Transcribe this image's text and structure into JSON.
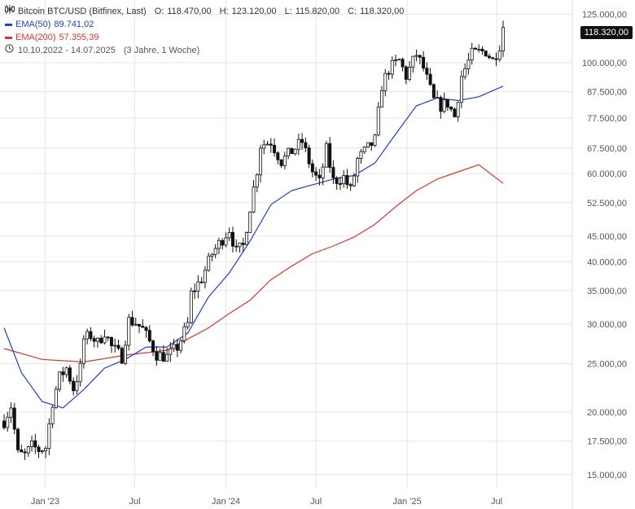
{
  "header": {
    "title": "Bitcoin BTC/USD (Bitfinex, Last)",
    "ohlc": [
      {
        "label": "O:",
        "value": "118.470,00"
      },
      {
        "label": "H:",
        "value": "123.120,00"
      },
      {
        "label": "L:",
        "value": "115.820,00"
      },
      {
        "label": "C:",
        "value": "118.320,00"
      }
    ],
    "ema50_label": "EMA(50)",
    "ema50_value": "89.741,02",
    "ema200_label": "EMA(200)",
    "ema200_value": "57.355,39",
    "date_range": "10.10.2022 - 14.07.2025",
    "duration": "(3 Jahre, 1 Woche)",
    "last_price_tag": "118.320,00"
  },
  "colors": {
    "up": "#ffffff",
    "down": "#111111",
    "candle_outline": "#111111",
    "ema50": "#1f3fd6",
    "ema200": "#e0342a",
    "grid": "#e6e6e6",
    "axis_text": "#555555"
  },
  "chart_data": {
    "type": "candlestick",
    "title": "Bitcoin BTC/USD (Bitfinex, Last)",
    "y_scale": "log",
    "ylim": [
      13800,
      131000
    ],
    "x_range": [
      "2022-10-10",
      "2025-07-14"
    ],
    "y_ticks": [
      {
        "value": 15000,
        "label": "15.000,00"
      },
      {
        "value": 17500,
        "label": "17.500,00"
      },
      {
        "value": 20000,
        "label": "20.000,00"
      },
      {
        "value": 25000,
        "label": "25.000,00"
      },
      {
        "value": 30000,
        "label": "30.000,00"
      },
      {
        "value": 35000,
        "label": "35.000,00"
      },
      {
        "value": 40000,
        "label": "40.000,00"
      },
      {
        "value": 45000,
        "label": "45.000,00"
      },
      {
        "value": 52500,
        "label": "52.500,00"
      },
      {
        "value": 60000,
        "label": "60.000,00"
      },
      {
        "value": 67500,
        "label": "67.500,00"
      },
      {
        "value": 77500,
        "label": "77.500,00"
      },
      {
        "value": 87500,
        "label": "87.500,00"
      },
      {
        "value": 100000,
        "label": "100.000,00"
      },
      {
        "value": 125000,
        "label": "125.000,00"
      }
    ],
    "x_ticks": [
      {
        "date": "2023-01-01",
        "label": "Jan '23"
      },
      {
        "date": "2023-07-01",
        "label": "Jul"
      },
      {
        "date": "2024-01-01",
        "label": "Jan '24"
      },
      {
        "date": "2024-07-01",
        "label": "Jul"
      },
      {
        "date": "2025-01-01",
        "label": "Jan '25"
      },
      {
        "date": "2025-07-01",
        "label": "Jul"
      }
    ],
    "close_series": [
      [
        "2022-10-10",
        19200
      ],
      [
        "2022-10-24",
        20600
      ],
      [
        "2022-11-07",
        16500
      ],
      [
        "2022-11-21",
        16400
      ],
      [
        "2022-12-05",
        17100
      ],
      [
        "2022-12-19",
        16800
      ],
      [
        "2023-01-02",
        17000
      ],
      [
        "2023-01-16",
        21000
      ],
      [
        "2023-01-30",
        23500
      ],
      [
        "2023-02-13",
        24500
      ],
      [
        "2023-02-27",
        22300
      ],
      [
        "2023-03-13",
        24500
      ],
      [
        "2023-03-20",
        28000
      ],
      [
        "2023-04-03",
        28500
      ],
      [
        "2023-04-17",
        27500
      ],
      [
        "2023-05-01",
        29000
      ],
      [
        "2023-05-15",
        27000
      ],
      [
        "2023-06-05",
        25800
      ],
      [
        "2023-06-19",
        30500
      ],
      [
        "2023-07-03",
        30200
      ],
      [
        "2023-07-17",
        29300
      ],
      [
        "2023-08-14",
        26100
      ],
      [
        "2023-09-04",
        25800
      ],
      [
        "2023-09-25",
        27000
      ],
      [
        "2023-10-16",
        30000
      ],
      [
        "2023-10-23",
        34500
      ],
      [
        "2023-11-13",
        37000
      ],
      [
        "2023-12-04",
        41500
      ],
      [
        "2024-01-08",
        46500
      ],
      [
        "2024-01-22",
        41800
      ],
      [
        "2024-02-05",
        43000
      ],
      [
        "2024-02-19",
        51500
      ],
      [
        "2024-03-04",
        61000
      ],
      [
        "2024-03-11",
        68500
      ],
      [
        "2024-04-01",
        69500
      ],
      [
        "2024-04-22",
        63500
      ],
      [
        "2024-05-13",
        66500
      ],
      [
        "2024-06-03",
        69500
      ],
      [
        "2024-06-24",
        60500
      ],
      [
        "2024-07-08",
        57500
      ],
      [
        "2024-07-22",
        67000
      ],
      [
        "2024-08-05",
        58000
      ],
      [
        "2024-08-26",
        59000
      ],
      [
        "2024-09-09",
        55500
      ],
      [
        "2024-09-23",
        64000
      ],
      [
        "2024-10-14",
        67500
      ],
      [
        "2024-10-28",
        70000
      ],
      [
        "2024-11-11",
        90000
      ],
      [
        "2024-11-25",
        97000
      ],
      [
        "2024-12-16",
        101000
      ],
      [
        "2024-12-30",
        94000
      ],
      [
        "2025-01-20",
        104000
      ],
      [
        "2025-02-03",
        97500
      ],
      [
        "2025-02-24",
        84000
      ],
      [
        "2025-03-10",
        82000
      ],
      [
        "2025-03-24",
        83000
      ],
      [
        "2025-04-07",
        78000
      ],
      [
        "2025-04-21",
        94000
      ],
      [
        "2025-05-12",
        104000
      ],
      [
        "2025-05-26",
        105000
      ],
      [
        "2025-06-09",
        105500
      ],
      [
        "2025-06-23",
        101000
      ],
      [
        "2025-07-07",
        108500
      ],
      [
        "2025-07-14",
        118320
      ]
    ],
    "series": [
      {
        "name": "EMA(50)",
        "last": 89741.02,
        "values": [
          [
            "2022-10-10",
            29500
          ],
          [
            "2022-11-14",
            24000
          ],
          [
            "2022-12-26",
            21000
          ],
          [
            "2023-02-06",
            20400
          ],
          [
            "2023-03-20",
            22200
          ],
          [
            "2023-05-01",
            24500
          ],
          [
            "2023-06-12",
            25500
          ],
          [
            "2023-07-24",
            27000
          ],
          [
            "2023-09-04",
            27000
          ],
          [
            "2023-10-16",
            28800
          ],
          [
            "2023-11-27",
            34000
          ],
          [
            "2024-01-08",
            38000
          ],
          [
            "2024-02-19",
            44000
          ],
          [
            "2024-04-01",
            52000
          ],
          [
            "2024-05-13",
            55500
          ],
          [
            "2024-06-24",
            57000
          ],
          [
            "2024-08-05",
            58500
          ],
          [
            "2024-09-16",
            59500
          ],
          [
            "2024-10-28",
            63000
          ],
          [
            "2024-12-09",
            72000
          ],
          [
            "2025-01-20",
            82000
          ],
          [
            "2025-03-03",
            85000
          ],
          [
            "2025-04-14",
            84000
          ],
          [
            "2025-05-26",
            85500
          ],
          [
            "2025-07-14",
            89741
          ]
        ]
      },
      {
        "name": "EMA(200)",
        "last": 57355.39,
        "values": [
          [
            "2022-10-10",
            26800
          ],
          [
            "2022-12-26",
            25500
          ],
          [
            "2023-03-20",
            25200
          ],
          [
            "2023-06-12",
            26000
          ],
          [
            "2023-09-04",
            26600
          ],
          [
            "2023-11-27",
            29500
          ],
          [
            "2024-01-08",
            31500
          ],
          [
            "2024-02-19",
            33500
          ],
          [
            "2024-04-01",
            36800
          ],
          [
            "2024-05-13",
            39200
          ],
          [
            "2024-06-24",
            41500
          ],
          [
            "2024-08-05",
            43000
          ],
          [
            "2024-09-16",
            44800
          ],
          [
            "2024-10-28",
            47500
          ],
          [
            "2024-12-09",
            51500
          ],
          [
            "2025-01-20",
            55500
          ],
          [
            "2025-03-03",
            58500
          ],
          [
            "2025-04-14",
            60500
          ],
          [
            "2025-05-26",
            62500
          ],
          [
            "2025-07-14",
            57355
          ]
        ]
      }
    ]
  }
}
